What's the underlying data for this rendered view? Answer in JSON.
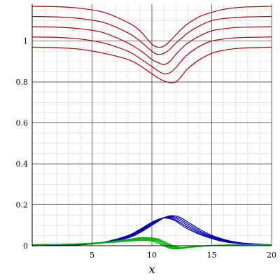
{
  "chart_data": {
    "type": "line",
    "title": "",
    "xlabel": "x",
    "ylabel": "",
    "xlim": [
      0,
      20
    ],
    "ylim": [
      0,
      1.18
    ],
    "x_ticks": [
      5,
      10,
      15,
      20
    ],
    "x_tick_labels": [
      "5",
      "10",
      "15",
      "20"
    ],
    "y_ticks": [
      0,
      0.2,
      0.4,
      0.6,
      0.8,
      1
    ],
    "y_tick_labels": [
      "0",
      "0.2",
      "0.4",
      "0.6",
      "0.8",
      "1"
    ],
    "grid": true,
    "legend": "none",
    "x": [
      0,
      2,
      4,
      6,
      8,
      9,
      10,
      10.5,
      11,
      11.5,
      12,
      12.5,
      13,
      14,
      15,
      16,
      17,
      18,
      20
    ],
    "series": [
      {
        "group": "red",
        "color": "#b30000",
        "values": [
          1.17,
          1.168,
          1.16,
          1.14,
          1.09,
          1.05,
          0.985,
          0.97,
          0.975,
          1.0,
          1.03,
          1.06,
          1.085,
          1.12,
          1.14,
          1.155,
          1.163,
          1.167,
          1.17
        ]
      },
      {
        "group": "red",
        "color": "#b30000",
        "values": [
          1.12,
          1.118,
          1.11,
          1.09,
          1.04,
          1.0,
          0.95,
          0.935,
          0.94,
          0.96,
          0.99,
          1.015,
          1.04,
          1.075,
          1.1,
          1.11,
          1.115,
          1.118,
          1.12
        ]
      },
      {
        "group": "red",
        "color": "#b30000",
        "values": [
          1.07,
          1.068,
          1.06,
          1.04,
          0.99,
          0.955,
          0.91,
          0.895,
          0.885,
          0.9,
          0.935,
          0.965,
          0.99,
          1.025,
          1.05,
          1.06,
          1.066,
          1.068,
          1.07
        ]
      },
      {
        "group": "red",
        "color": "#b30000",
        "values": [
          1.02,
          1.018,
          1.01,
          0.99,
          0.95,
          0.915,
          0.875,
          0.855,
          0.84,
          0.845,
          0.87,
          0.905,
          0.935,
          0.975,
          1.0,
          1.01,
          1.016,
          1.018,
          1.02
        ]
      },
      {
        "group": "red",
        "color": "#b30000",
        "values": [
          0.97,
          0.968,
          0.96,
          0.94,
          0.91,
          0.88,
          0.84,
          0.82,
          0.805,
          0.797,
          0.8,
          0.83,
          0.865,
          0.91,
          0.94,
          0.955,
          0.963,
          0.967,
          0.97
        ]
      },
      {
        "group": "blue",
        "color": "#0000b3",
        "values": [
          0,
          0.002,
          0.006,
          0.018,
          0.05,
          0.08,
          0.115,
          0.128,
          0.135,
          0.132,
          0.12,
          0.1,
          0.082,
          0.055,
          0.035,
          0.02,
          0.012,
          0.008,
          0.004
        ]
      },
      {
        "group": "blue",
        "color": "#0000b3",
        "values": [
          0,
          0.002,
          0.006,
          0.017,
          0.047,
          0.076,
          0.112,
          0.126,
          0.136,
          0.136,
          0.126,
          0.108,
          0.09,
          0.06,
          0.038,
          0.022,
          0.013,
          0.009,
          0.004
        ]
      },
      {
        "group": "blue",
        "color": "#0000b3",
        "values": [
          0,
          0.002,
          0.005,
          0.016,
          0.044,
          0.072,
          0.108,
          0.124,
          0.137,
          0.14,
          0.133,
          0.117,
          0.098,
          0.066,
          0.042,
          0.025,
          0.015,
          0.009,
          0.004
        ]
      },
      {
        "group": "blue",
        "color": "#0000b3",
        "values": [
          0,
          0.002,
          0.005,
          0.015,
          0.041,
          0.068,
          0.104,
          0.121,
          0.137,
          0.143,
          0.139,
          0.126,
          0.107,
          0.072,
          0.046,
          0.028,
          0.016,
          0.01,
          0.004
        ]
      },
      {
        "group": "blue",
        "color": "#0000b3",
        "values": [
          0,
          0.002,
          0.005,
          0.014,
          0.038,
          0.064,
          0.1,
          0.118,
          0.136,
          0.146,
          0.145,
          0.134,
          0.116,
          0.08,
          0.051,
          0.031,
          0.018,
          0.011,
          0.005
        ]
      },
      {
        "group": "green",
        "color": "#00b300",
        "values": [
          0.005,
          0.006,
          0.008,
          0.013,
          0.022,
          0.026,
          0.022,
          0.012,
          -0.002,
          -0.012,
          -0.016,
          -0.014,
          -0.01,
          -0.004,
          0.0,
          0.003,
          0.004,
          0.005,
          0.005
        ]
      },
      {
        "group": "green",
        "color": "#00b300",
        "values": [
          0.005,
          0.006,
          0.009,
          0.014,
          0.025,
          0.03,
          0.027,
          0.019,
          0.004,
          -0.008,
          -0.014,
          -0.013,
          -0.009,
          -0.003,
          0.001,
          0.003,
          0.004,
          0.005,
          0.005
        ]
      },
      {
        "group": "green",
        "color": "#00b300",
        "values": [
          0.005,
          0.006,
          0.009,
          0.015,
          0.027,
          0.033,
          0.031,
          0.024,
          0.01,
          -0.003,
          -0.011,
          -0.012,
          -0.008,
          -0.002,
          0.001,
          0.003,
          0.004,
          0.005,
          0.005
        ]
      },
      {
        "group": "green",
        "color": "#00b300",
        "values": [
          0.005,
          0.006,
          0.009,
          0.016,
          0.029,
          0.036,
          0.035,
          0.029,
          0.016,
          0.002,
          -0.008,
          -0.01,
          -0.007,
          -0.002,
          0.001,
          0.003,
          0.004,
          0.005,
          0.005
        ]
      },
      {
        "group": "green",
        "color": "#00b300",
        "values": [
          0.005,
          0.006,
          0.01,
          0.017,
          0.031,
          0.039,
          0.038,
          0.033,
          0.021,
          0.007,
          -0.004,
          -0.008,
          -0.006,
          -0.001,
          0.002,
          0.003,
          0.004,
          0.005,
          0.005
        ]
      }
    ]
  }
}
